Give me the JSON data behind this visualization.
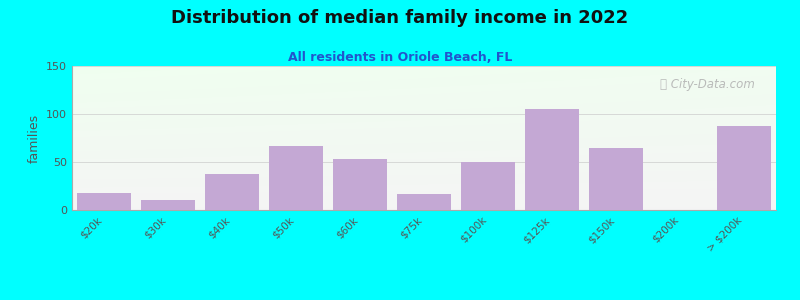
{
  "title": "Distribution of median family income in 2022",
  "subtitle": "All residents in Oriole Beach, FL",
  "ylabel": "families",
  "background_color": "#00FFFF",
  "bar_color": "#C4A8D4",
  "categories": [
    "$20k",
    "$30k",
    "$40k",
    "$50k",
    "$60k",
    "$75k",
    "$100k",
    "$125k",
    "$150k",
    "$200k",
    "> $200k"
  ],
  "values": [
    18,
    10,
    38,
    67,
    53,
    17,
    50,
    105,
    65,
    0,
    88
  ],
  "ylim": [
    0,
    150
  ],
  "yticks": [
    0,
    50,
    100,
    150
  ],
  "watermark": "Ⓜ City-Data.com"
}
